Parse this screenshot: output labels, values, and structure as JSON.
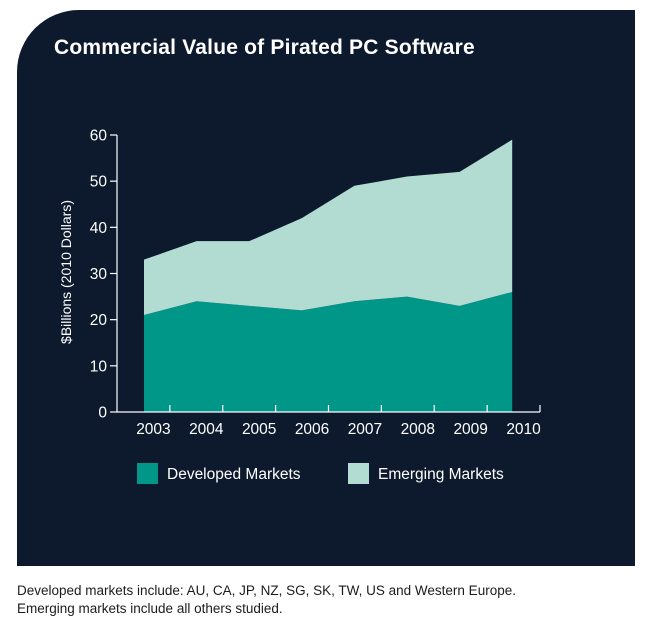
{
  "chart_data": {
    "type": "area",
    "stacked": true,
    "title": "Commercial Value of Pirated PC Software",
    "ylabel": "$Billions (2010 Dollars)",
    "xlabel": "",
    "categories": [
      "2003",
      "2004",
      "2005",
      "2006",
      "2007",
      "2008",
      "2009",
      "2010"
    ],
    "yticks": [
      "0",
      "10",
      "20",
      "30",
      "40",
      "50",
      "60"
    ],
    "ylim": [
      0,
      60
    ],
    "grid": false,
    "legend_position": "bottom",
    "series": [
      {
        "name": "Developed Markets",
        "color": "#009688",
        "values": [
          21,
          24,
          23,
          22,
          24,
          25,
          23,
          26
        ]
      },
      {
        "name": "Emerging Markets",
        "color": "#b2dcd2",
        "values": [
          12,
          13,
          14,
          20,
          25,
          26,
          29,
          33
        ]
      }
    ]
  },
  "colors": {
    "background": "#0d1a2e",
    "axis": "#ffffff",
    "text": "#ffffff"
  },
  "footnote": "Developed markets include: AU, CA, JP, NZ, SG, SK, TW, US and Western Europe. Emerging markets include all others studied."
}
